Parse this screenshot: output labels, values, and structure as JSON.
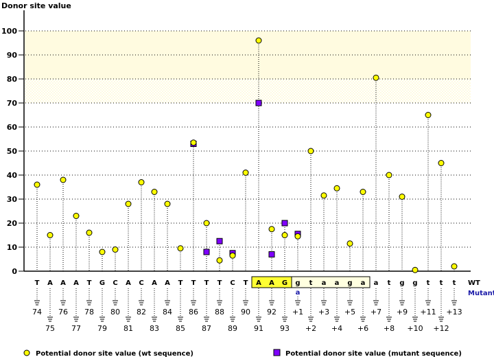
{
  "chart_data": {
    "type": "scatter",
    "title": "Donor site value",
    "ylabel": "Donor site value",
    "xlabel": "",
    "ylim": [
      0,
      100
    ],
    "yticks": [
      0,
      10,
      20,
      30,
      40,
      50,
      60,
      70,
      80,
      90,
      100
    ],
    "grid": true,
    "highlight_bands": [
      {
        "from": 80,
        "to": 100,
        "color": "#fffbe0",
        "style": "solid"
      },
      {
        "from": 70,
        "to": 80,
        "color": "#fffbe0",
        "style": "hatched"
      }
    ],
    "positions": [
      "74",
      "75",
      "76",
      "77",
      "78",
      "79",
      "80",
      "81",
      "82",
      "83",
      "84",
      "85",
      "86",
      "87",
      "88",
      "89",
      "90",
      "91",
      "92",
      "93",
      "+1",
      "+2",
      "+3",
      "+4",
      "+5",
      "+6",
      "+7",
      "+8",
      "+9",
      "+10",
      "+11",
      "+12",
      "+13"
    ],
    "wt_sequence": [
      "T",
      "A",
      "A",
      "A",
      "T",
      "G",
      "C",
      "A",
      "C",
      "A",
      "A",
      "T",
      "T",
      "T",
      "T",
      "C",
      "T",
      "A",
      "A",
      "G",
      "g",
      "t",
      "a",
      "a",
      "g",
      "a",
      "a",
      "t",
      "g",
      "g",
      "t",
      "t",
      "t"
    ],
    "mutant_sequence": [
      "",
      "",
      "",
      "",
      "",
      "",
      "",
      "",
      "",
      "",
      "",
      "",
      "",
      "",
      "",
      "",
      "",
      "",
      "",
      "",
      "a",
      "",
      "",
      "",
      "",
      "",
      "",
      "",
      "",
      "",
      "",
      "",
      ""
    ],
    "exon_box": {
      "start_index": 17,
      "end_index": 19,
      "color": "#ffff33"
    },
    "intron_box": {
      "start_index": 20,
      "end_index": 25,
      "color": "#ffffe0"
    },
    "row_labels": {
      "wt": "WT",
      "mutant": "Mutant"
    },
    "series": [
      {
        "name": "Potential donor site value (wt sequence)",
        "marker": "circle",
        "color": "#ffff00",
        "values": [
          36,
          15,
          38,
          23,
          16,
          8,
          9,
          28,
          37,
          33,
          28,
          9.5,
          53.5,
          20,
          4.5,
          6.5,
          41,
          96,
          17.5,
          15,
          14.5,
          50,
          31.5,
          34.5,
          11.5,
          33,
          80.5,
          40,
          31,
          0.5,
          65,
          45,
          2
        ]
      },
      {
        "name": "Potential donor site value (mutant sequence)",
        "marker": "square",
        "color": "#7f00ff",
        "values": [
          null,
          null,
          null,
          null,
          null,
          null,
          null,
          null,
          null,
          null,
          null,
          null,
          53,
          8,
          12.5,
          7.5,
          null,
          70,
          7,
          20,
          15.5,
          null,
          null,
          null,
          null,
          null,
          null,
          null,
          null,
          null,
          null,
          null,
          null
        ]
      }
    ],
    "legend": [
      {
        "label": "Potential donor site value (wt sequence)",
        "marker": "circle",
        "color": "#ffff00"
      },
      {
        "label": "Potential donor site value (mutant sequence)",
        "marker": "square",
        "color": "#7f00ff"
      }
    ],
    "legend_position": "bottom"
  }
}
